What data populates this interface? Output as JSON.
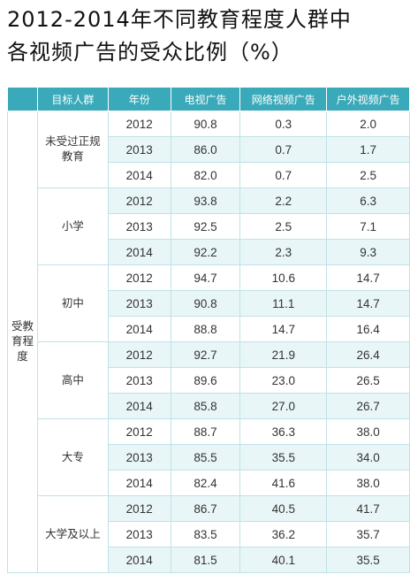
{
  "title": {
    "line1": "2012-2014年不同教育程度人群中",
    "line2": "各视频广告的受众比例（%）"
  },
  "colors": {
    "header_bg": "#3aa9b9",
    "stripe": "#e9f6f8",
    "border": "#bfe2e7"
  },
  "table": {
    "headers": [
      "",
      "目标人群",
      "年份",
      "电视广告",
      "网络视频广告",
      "户外视频广告"
    ],
    "dimension": "受教育程度",
    "groups": [
      {
        "name": "未受过正规教育",
        "rows": [
          [
            "2012",
            "90.8",
            "0.3",
            "2.0"
          ],
          [
            "2013",
            "86.0",
            "0.7",
            "1.7"
          ],
          [
            "2014",
            "82.0",
            "0.7",
            "2.5"
          ]
        ]
      },
      {
        "name": "小学",
        "rows": [
          [
            "2012",
            "93.8",
            "2.2",
            "6.3"
          ],
          [
            "2013",
            "92.5",
            "2.5",
            "7.1"
          ],
          [
            "2014",
            "92.2",
            "2.3",
            "9.3"
          ]
        ]
      },
      {
        "name": "初中",
        "rows": [
          [
            "2012",
            "94.7",
            "10.6",
            "14.7"
          ],
          [
            "2013",
            "90.8",
            "11.1",
            "14.7"
          ],
          [
            "2014",
            "88.8",
            "14.7",
            "16.4"
          ]
        ]
      },
      {
        "name": "高中",
        "rows": [
          [
            "2012",
            "92.7",
            "21.9",
            "26.4"
          ],
          [
            "2013",
            "89.6",
            "23.0",
            "26.5"
          ],
          [
            "2014",
            "85.8",
            "27.0",
            "26.7"
          ]
        ]
      },
      {
        "name": "大专",
        "rows": [
          [
            "2012",
            "88.7",
            "36.3",
            "38.0"
          ],
          [
            "2013",
            "85.5",
            "35.5",
            "34.0"
          ],
          [
            "2014",
            "82.4",
            "41.6",
            "38.0"
          ]
        ]
      },
      {
        "name": "大学及以上",
        "rows": [
          [
            "2012",
            "86.7",
            "40.5",
            "41.7"
          ],
          [
            "2013",
            "83.5",
            "36.2",
            "35.7"
          ],
          [
            "2014",
            "81.5",
            "40.1",
            "35.5"
          ]
        ]
      }
    ]
  },
  "chart_data": {
    "type": "table",
    "title": "2012-2014年不同教育程度人群中各视频广告的受众比例（%）",
    "columns": [
      "目标人群",
      "年份",
      "电视广告",
      "网络视频广告",
      "户外视频广告"
    ],
    "rows": [
      [
        "未受过正规教育",
        "2012",
        90.8,
        0.3,
        2.0
      ],
      [
        "未受过正规教育",
        "2013",
        86.0,
        0.7,
        1.7
      ],
      [
        "未受过正规教育",
        "2014",
        82.0,
        0.7,
        2.5
      ],
      [
        "小学",
        "2012",
        93.8,
        2.2,
        6.3
      ],
      [
        "小学",
        "2013",
        92.5,
        2.5,
        7.1
      ],
      [
        "小学",
        "2014",
        92.2,
        2.3,
        9.3
      ],
      [
        "初中",
        "2012",
        94.7,
        10.6,
        14.7
      ],
      [
        "初中",
        "2013",
        90.8,
        11.1,
        14.7
      ],
      [
        "初中",
        "2014",
        88.8,
        14.7,
        16.4
      ],
      [
        "高中",
        "2012",
        92.7,
        21.9,
        26.4
      ],
      [
        "高中",
        "2013",
        89.6,
        23.0,
        26.5
      ],
      [
        "高中",
        "2014",
        85.8,
        27.0,
        26.7
      ],
      [
        "大专",
        "2012",
        88.7,
        36.3,
        38.0
      ],
      [
        "大专",
        "2013",
        85.5,
        35.5,
        34.0
      ],
      [
        "大专",
        "2014",
        82.4,
        41.6,
        38.0
      ],
      [
        "大学及以上",
        "2012",
        86.7,
        40.5,
        41.7
      ],
      [
        "大学及以上",
        "2013",
        83.5,
        36.2,
        35.7
      ],
      [
        "大学及以上",
        "2014",
        81.5,
        40.1,
        35.5
      ]
    ]
  }
}
